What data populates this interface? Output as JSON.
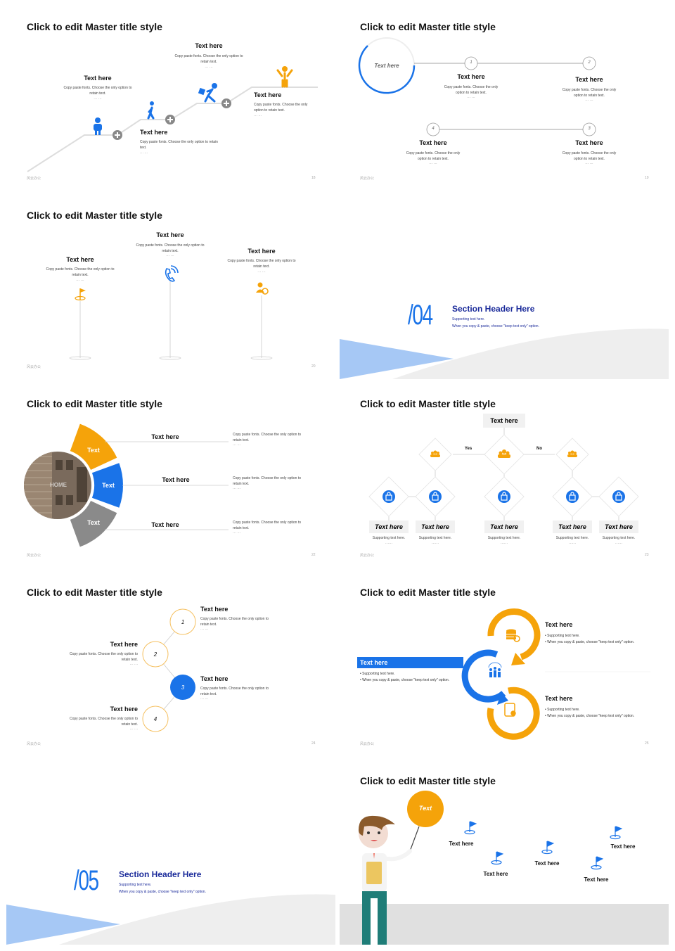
{
  "common": {
    "slide_title": "Click to edit Master title style",
    "text_here": "Text here",
    "copy_desc": "Copy paste fonts. Choose the only option to retain text.",
    "dots": "··· ···",
    "footer": "风云办公",
    "supporting": "Supporting text here.",
    "keep_text": "When you copy & paste, choose \"keep text only\" option.",
    "bullet_supporting": "•  Supporting text here.",
    "bullet_keep_text": "•  When you copy & paste, choose \"keep text only\" option."
  },
  "slides": [
    {
      "page": "18"
    },
    {
      "page": "19",
      "circle_label": "Text here",
      "steps": [
        "1",
        "2",
        "3",
        "4"
      ]
    },
    {
      "page": "20"
    },
    {
      "section_number": "/04",
      "section_title": "Section Header Here"
    },
    {
      "page": "22",
      "sectors": [
        "Text",
        "Text",
        "Text"
      ],
      "photo_label": "HOME"
    },
    {
      "page": "23",
      "top": "Text here",
      "yes": "Yes",
      "no": "No",
      "dots": "······"
    },
    {
      "page": "24",
      "steps": [
        "1",
        "2",
        "3",
        "4"
      ]
    },
    {
      "page": "25"
    },
    {
      "section_number": "/05",
      "section_title": "Section Header Here"
    },
    {
      "bubble": "Text"
    }
  ],
  "colors": {
    "blue": "#1a73e8",
    "orange": "#f5a30a",
    "gray": "#8a8a8a",
    "navy": "#1a2a9a",
    "light_blue": "#a6c8f5"
  }
}
